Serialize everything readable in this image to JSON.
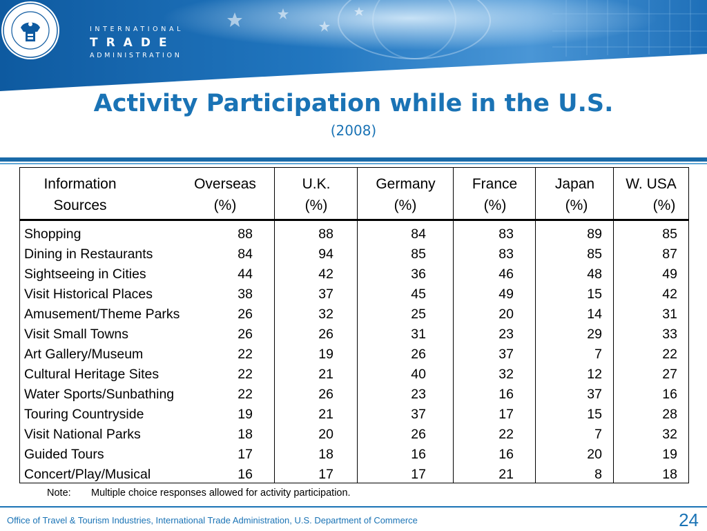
{
  "header": {
    "agency_line1": "INTERNATIONAL",
    "agency_line2": "TRADE",
    "agency_line3": "ADMINISTRATION",
    "seal_icon": "department-of-commerce-seal-icon"
  },
  "title": "Activity Participation while in the U.S.",
  "subtitle": "(2008)",
  "table": {
    "label_header": [
      "Information",
      "Sources"
    ],
    "columns": [
      {
        "name": "Overseas",
        "unit": "(%)"
      },
      {
        "name": "U.K.",
        "unit": "(%)"
      },
      {
        "name": "Germany",
        "unit": "(%)"
      },
      {
        "name": "France",
        "unit": "(%)"
      },
      {
        "name": "Japan",
        "unit": "(%)"
      },
      {
        "name": "W. USA",
        "unit": "(%)"
      }
    ],
    "rows": [
      {
        "label": "Shopping",
        "values": [
          "88",
          "88",
          "84",
          "83",
          "89",
          "85"
        ]
      },
      {
        "label": "Dining in Restaurants",
        "values": [
          "84",
          "94",
          "85",
          "83",
          "85",
          "87"
        ]
      },
      {
        "label": "Sightseeing in Cities",
        "values": [
          "44",
          "42",
          "36",
          "46",
          "48",
          "49"
        ]
      },
      {
        "label": "Visit Historical Places",
        "values": [
          "38",
          "37",
          "45",
          "49",
          "15",
          "42"
        ]
      },
      {
        "label": "Amusement/Theme Parks",
        "values": [
          "26",
          "32",
          "25",
          "20",
          "14",
          "31"
        ]
      },
      {
        "label": "Visit Small Towns",
        "values": [
          "26",
          "26",
          "31",
          "23",
          "29",
          "33"
        ]
      },
      {
        "label": "Art Gallery/Museum",
        "values": [
          "22",
          "19",
          "26",
          "37",
          "7",
          "22"
        ]
      },
      {
        "label": "Cultural Heritage Sites",
        "values": [
          "22",
          "21",
          "40",
          "32",
          "12",
          "27"
        ]
      },
      {
        "label": "Water Sports/Sunbathing",
        "values": [
          "22",
          "26",
          "23",
          "16",
          "37",
          "16"
        ]
      },
      {
        "label": "Touring Countryside",
        "values": [
          "19",
          "21",
          "37",
          "17",
          "15",
          "28"
        ]
      },
      {
        "label": "Visit National Parks",
        "values": [
          "18",
          "20",
          "26",
          "22",
          "7",
          "32"
        ]
      },
      {
        "label": "Guided Tours",
        "values": [
          "17",
          "18",
          "16",
          "16",
          "20",
          "19"
        ]
      },
      {
        "label": "Concert/Play/Musical",
        "values": [
          "16",
          "17",
          "17",
          "21",
          "8",
          "18"
        ]
      }
    ]
  },
  "note": {
    "label": "Note:",
    "text": "Multiple choice responses allowed for activity participation."
  },
  "footer": {
    "text": "Office of Travel & Tourism Industries, International Trade Administration, U.S. Department of Commerce",
    "page_number": "24"
  },
  "colors": {
    "brand_blue": "#1a73b5",
    "banner_dark": "#0d4f8c"
  }
}
